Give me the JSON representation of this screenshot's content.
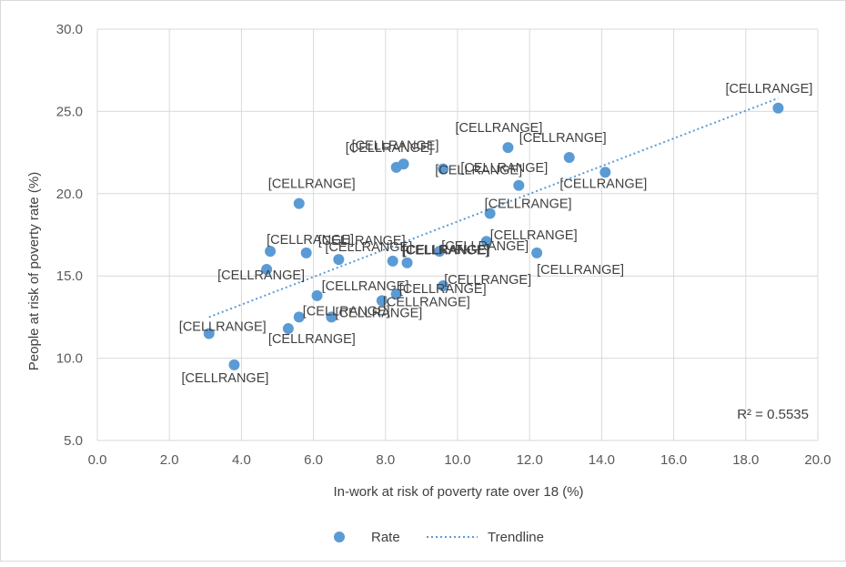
{
  "chart_data": {
    "type": "scatter",
    "title": "",
    "xlabel": "In-work at risk of poverty rate over  18 (%)",
    "ylabel": "People at risk of poverty rate (%)",
    "xlim": [
      0,
      20
    ],
    "ylim": [
      5,
      30
    ],
    "x_ticks": [
      "0.0",
      "2.0",
      "4.0",
      "6.0",
      "8.0",
      "10.0",
      "12.0",
      "14.0",
      "16.0",
      "18.0",
      "20.0"
    ],
    "y_ticks": [
      "5.0",
      "10.0",
      "15.0",
      "20.0",
      "25.0",
      "30.0"
    ],
    "grid": true,
    "legend_position": "bottom",
    "point_color": "#5b9bd5",
    "trend_color": "#5b9bd5",
    "r_squared_label": "R² = 0.5535",
    "series": [
      {
        "name": "Rate",
        "points": [
          {
            "x": 18.9,
            "y": 25.2,
            "label": "[CELLRANGE]"
          },
          {
            "x": 11.4,
            "y": 22.8,
            "label": "[CELLRANGE]"
          },
          {
            "x": 13.1,
            "y": 22.2,
            "label": "[CELLRANGE]"
          },
          {
            "x": 8.5,
            "y": 21.8,
            "label": "[CELLRANGE]"
          },
          {
            "x": 8.3,
            "y": 21.6,
            "label": "[CELLRANGE]"
          },
          {
            "x": 9.6,
            "y": 21.5,
            "label": "[CELLRANGE]"
          },
          {
            "x": 11.7,
            "y": 20.5,
            "label": "[CELLRANGE]"
          },
          {
            "x": 14.1,
            "y": 21.3,
            "label": "[CELLRANGE]"
          },
          {
            "x": 5.6,
            "y": 19.4,
            "label": "[CELLRANGE]"
          },
          {
            "x": 10.9,
            "y": 18.8,
            "label": "[CELLRANGE]"
          },
          {
            "x": 4.8,
            "y": 16.5,
            "label": "[CELLRANGE]"
          },
          {
            "x": 5.8,
            "y": 16.4,
            "label": "[CELLRANGE]"
          },
          {
            "x": 6.7,
            "y": 16.0,
            "label": "[CELLRANGE]"
          },
          {
            "x": 4.7,
            "y": 15.4,
            "label": "[CELLRANGE]"
          },
          {
            "x": 8.2,
            "y": 15.9,
            "label": "[CELLRANGE]"
          },
          {
            "x": 8.6,
            "y": 15.8,
            "label": "[CELLRANGE]"
          },
          {
            "x": 9.5,
            "y": 16.5,
            "label": "[CELLRANGE]"
          },
          {
            "x": 10.8,
            "y": 17.1,
            "label": "[CELLRANGE]"
          },
          {
            "x": 12.2,
            "y": 16.4,
            "label": "[CELLRANGE]"
          },
          {
            "x": 9.6,
            "y": 14.4,
            "label": "[CELLRANGE]"
          },
          {
            "x": 6.1,
            "y": 13.8,
            "label": "[CELLRANGE]"
          },
          {
            "x": 7.9,
            "y": 13.5,
            "label": "[CELLRANGE]"
          },
          {
            "x": 8.3,
            "y": 13.9,
            "label": "[CELLRANGE]"
          },
          {
            "x": 5.6,
            "y": 12.5,
            "label": "[CELLRANGE]"
          },
          {
            "x": 6.5,
            "y": 12.5,
            "label": "[CELLRANGE]"
          },
          {
            "x": 5.3,
            "y": 11.8,
            "label": "[CELLRANGE]"
          },
          {
            "x": 3.1,
            "y": 11.5,
            "label": "[CELLRANGE]"
          },
          {
            "x": 3.8,
            "y": 9.6,
            "label": "[CELLRANGE]"
          }
        ]
      }
    ],
    "trendline": {
      "name": "Trendline",
      "x": [
        3.1,
        18.9
      ],
      "y": [
        12.5,
        25.8
      ]
    }
  }
}
